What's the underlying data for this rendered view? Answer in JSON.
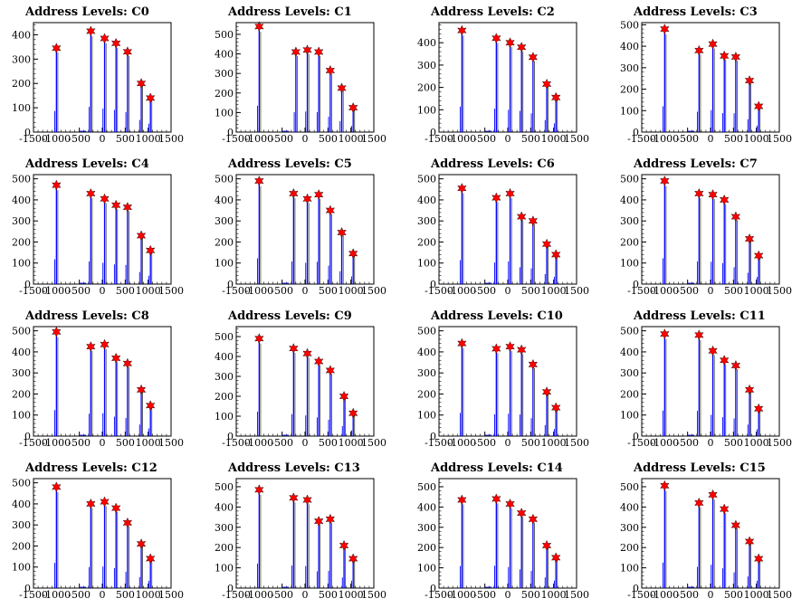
{
  "chart_data": [
    {
      "type": "bar",
      "title": "Address Levels: C0",
      "xlim": [
        -1500,
        1500
      ],
      "ylim": [
        0,
        450
      ],
      "yticks": [
        0,
        100,
        200,
        300,
        400
      ],
      "xticks": [
        "-1500",
        "-1000",
        "-500",
        "0",
        "500",
        "1000",
        "1500"
      ],
      "peaks_x": [
        -1000,
        -250,
        50,
        300,
        550,
        850,
        1050
      ],
      "peaks_y": [
        345,
        415,
        385,
        365,
        330,
        200,
        140
      ],
      "marker_color": "#ff0000",
      "bar_color": "#0000ff"
    },
    {
      "type": "bar",
      "title": "Address Levels: C1",
      "xlim": [
        -1500,
        1500
      ],
      "ylim": [
        0,
        560
      ],
      "yticks": [
        0,
        100,
        200,
        300,
        400,
        500
      ],
      "xticks": [
        "-1500",
        "-1000",
        "-500",
        "0",
        "500",
        "1000",
        "1500"
      ],
      "peaks_x": [
        -1000,
        -200,
        50,
        300,
        550,
        800,
        1050
      ],
      "peaks_y": [
        540,
        410,
        420,
        410,
        315,
        225,
        125
      ],
      "marker_color": "#ff0000",
      "bar_color": "#0000ff"
    },
    {
      "type": "bar",
      "title": "Address Levels: C2",
      "xlim": [
        -1500,
        1500
      ],
      "ylim": [
        0,
        490
      ],
      "yticks": [
        0,
        100,
        200,
        300,
        400
      ],
      "xticks": [
        "-1500",
        "-1000",
        "-500",
        "0",
        "500",
        "1000",
        "1500"
      ],
      "peaks_x": [
        -1000,
        -250,
        50,
        300,
        550,
        850,
        1050
      ],
      "peaks_y": [
        455,
        420,
        400,
        380,
        335,
        215,
        155
      ],
      "marker_color": "#ff0000",
      "bar_color": "#0000ff"
    },
    {
      "type": "bar",
      "title": "Address Levels: C3",
      "xlim": [
        -1500,
        1500
      ],
      "ylim": [
        0,
        510
      ],
      "yticks": [
        0,
        100,
        200,
        300,
        400,
        500
      ],
      "xticks": [
        "-1500",
        "-1000",
        "-500",
        "0",
        "500",
        "1000",
        "1500"
      ],
      "peaks_x": [
        -1000,
        -250,
        50,
        300,
        550,
        850,
        1050
      ],
      "peaks_y": [
        480,
        380,
        410,
        355,
        350,
        240,
        120
      ],
      "marker_color": "#ff0000",
      "bar_color": "#0000ff"
    },
    {
      "type": "bar",
      "title": "Address Levels: C4",
      "xlim": [
        -1500,
        1500
      ],
      "ylim": [
        0,
        520
      ],
      "yticks": [
        0,
        100,
        200,
        300,
        400,
        500
      ],
      "xticks": [
        "-1500",
        "-1000",
        "-500",
        "0",
        "500",
        "1000",
        "1500"
      ],
      "peaks_x": [
        -1000,
        -250,
        50,
        300,
        550,
        850,
        1050
      ],
      "peaks_y": [
        470,
        430,
        405,
        375,
        365,
        230,
        160
      ],
      "marker_color": "#ff0000",
      "bar_color": "#0000ff"
    },
    {
      "type": "bar",
      "title": "Address Levels: C5",
      "xlim": [
        -1500,
        1500
      ],
      "ylim": [
        0,
        520
      ],
      "yticks": [
        0,
        100,
        200,
        300,
        400,
        500
      ],
      "xticks": [
        "-1500",
        "-1000",
        "-500",
        "0",
        "500",
        "1000",
        "1500"
      ],
      "peaks_x": [
        -1000,
        -250,
        50,
        300,
        550,
        800,
        1050
      ],
      "peaks_y": [
        490,
        430,
        405,
        425,
        350,
        245,
        145
      ],
      "marker_color": "#ff0000",
      "bar_color": "#0000ff"
    },
    {
      "type": "bar",
      "title": "Address Levels: C6",
      "xlim": [
        -1500,
        1500
      ],
      "ylim": [
        0,
        520
      ],
      "yticks": [
        0,
        100,
        200,
        300,
        400,
        500
      ],
      "xticks": [
        "-1500",
        "-1000",
        "-500",
        "0",
        "500",
        "1000",
        "1500"
      ],
      "peaks_x": [
        -1000,
        -250,
        50,
        300,
        550,
        850,
        1050
      ],
      "peaks_y": [
        455,
        410,
        430,
        320,
        300,
        190,
        140
      ],
      "marker_color": "#ff0000",
      "bar_color": "#0000ff"
    },
    {
      "type": "bar",
      "title": "Address Levels: C7",
      "xlim": [
        -1500,
        1500
      ],
      "ylim": [
        0,
        520
      ],
      "yticks": [
        0,
        100,
        200,
        300,
        400,
        500
      ],
      "xticks": [
        "-1500",
        "-1000",
        "-500",
        "0",
        "500",
        "1000",
        "1500"
      ],
      "peaks_x": [
        -1000,
        -250,
        50,
        300,
        550,
        850,
        1050
      ],
      "peaks_y": [
        490,
        430,
        425,
        400,
        320,
        215,
        135
      ],
      "marker_color": "#ff0000",
      "bar_color": "#0000ff"
    },
    {
      "type": "bar",
      "title": "Address Levels: C8",
      "xlim": [
        -1500,
        1500
      ],
      "ylim": [
        0,
        520
      ],
      "yticks": [
        0,
        100,
        200,
        300,
        400,
        500
      ],
      "xticks": [
        "-1500",
        "-1000",
        "-500",
        "0",
        "500",
        "1000",
        "1500"
      ],
      "peaks_x": [
        -1000,
        -250,
        50,
        300,
        550,
        850,
        1050
      ],
      "peaks_y": [
        495,
        425,
        435,
        370,
        345,
        220,
        145
      ],
      "marker_color": "#ff0000",
      "bar_color": "#0000ff"
    },
    {
      "type": "bar",
      "title": "Address Levels: C9",
      "xlim": [
        -1500,
        1500
      ],
      "ylim": [
        0,
        550
      ],
      "yticks": [
        0,
        100,
        200,
        300,
        400,
        500
      ],
      "xticks": [
        "-1500",
        "-1000",
        "-500",
        "0",
        "500",
        "1000",
        "1500"
      ],
      "peaks_x": [
        -1000,
        -250,
        50,
        300,
        550,
        850,
        1050
      ],
      "peaks_y": [
        490,
        440,
        415,
        375,
        330,
        200,
        115
      ],
      "marker_color": "#ff0000",
      "bar_color": "#0000ff"
    },
    {
      "type": "bar",
      "title": "Address Levels: C10",
      "xlim": [
        -1500,
        1500
      ],
      "ylim": [
        0,
        520
      ],
      "yticks": [
        0,
        100,
        200,
        300,
        400,
        500
      ],
      "xticks": [
        "-1500",
        "-1000",
        "-500",
        "0",
        "500",
        "1000",
        "1500"
      ],
      "peaks_x": [
        -1000,
        -250,
        50,
        300,
        550,
        850,
        1050
      ],
      "peaks_y": [
        440,
        415,
        425,
        410,
        340,
        210,
        135
      ],
      "marker_color": "#ff0000",
      "bar_color": "#0000ff"
    },
    {
      "type": "bar",
      "title": "Address Levels: C11",
      "xlim": [
        -1500,
        1500
      ],
      "ylim": [
        0,
        520
      ],
      "yticks": [
        0,
        100,
        200,
        300,
        400,
        500
      ],
      "xticks": [
        "-1500",
        "-1000",
        "-500",
        "0",
        "500",
        "1000",
        "1500"
      ],
      "peaks_x": [
        -1000,
        -250,
        50,
        300,
        550,
        850,
        1050
      ],
      "peaks_y": [
        485,
        480,
        405,
        360,
        335,
        220,
        130
      ],
      "marker_color": "#ff0000",
      "bar_color": "#0000ff"
    },
    {
      "type": "bar",
      "title": "Address Levels: C12",
      "xlim": [
        -1500,
        1500
      ],
      "ylim": [
        0,
        520
      ],
      "yticks": [
        0,
        100,
        200,
        300,
        400,
        500
      ],
      "xticks": [
        "-1500",
        "-1000",
        "-500",
        "0",
        "500",
        "1000",
        "1500"
      ],
      "peaks_x": [
        -1000,
        -250,
        50,
        300,
        550,
        850,
        1050
      ],
      "peaks_y": [
        480,
        400,
        410,
        380,
        310,
        210,
        140
      ],
      "marker_color": "#ff0000",
      "bar_color": "#0000ff"
    },
    {
      "type": "bar",
      "title": "Address Levels: C13",
      "xlim": [
        -1500,
        1500
      ],
      "ylim": [
        0,
        540
      ],
      "yticks": [
        0,
        100,
        200,
        300,
        400,
        500
      ],
      "xticks": [
        "-1500",
        "-1000",
        "-500",
        "0",
        "500",
        "1000",
        "1500"
      ],
      "peaks_x": [
        -1000,
        -250,
        50,
        300,
        550,
        850,
        1050
      ],
      "peaks_y": [
        485,
        445,
        435,
        330,
        340,
        210,
        145
      ],
      "marker_color": "#ff0000",
      "bar_color": "#0000ff"
    },
    {
      "type": "bar",
      "title": "Address Levels: C14",
      "xlim": [
        -1500,
        1500
      ],
      "ylim": [
        0,
        540
      ],
      "yticks": [
        0,
        100,
        200,
        300,
        400,
        500
      ],
      "xticks": [
        "-1500",
        "-1000",
        "-500",
        "0",
        "500",
        "1000",
        "1500"
      ],
      "peaks_x": [
        -1000,
        -250,
        50,
        300,
        550,
        850,
        1050
      ],
      "peaks_y": [
        435,
        440,
        415,
        370,
        340,
        210,
        150
      ],
      "marker_color": "#ff0000",
      "bar_color": "#0000ff"
    },
    {
      "type": "bar",
      "title": "Address Levels: C15",
      "xlim": [
        -1500,
        1500
      ],
      "ylim": [
        0,
        540
      ],
      "yticks": [
        0,
        100,
        200,
        300,
        400,
        500
      ],
      "xticks": [
        "-1500",
        "-1000",
        "-500",
        "0",
        "500",
        "1000",
        "1500"
      ],
      "peaks_x": [
        -1000,
        -250,
        50,
        300,
        550,
        850,
        1050
      ],
      "peaks_y": [
        505,
        420,
        460,
        390,
        310,
        230,
        145
      ],
      "marker_color": "#ff0000",
      "bar_color": "#0000ff"
    }
  ]
}
